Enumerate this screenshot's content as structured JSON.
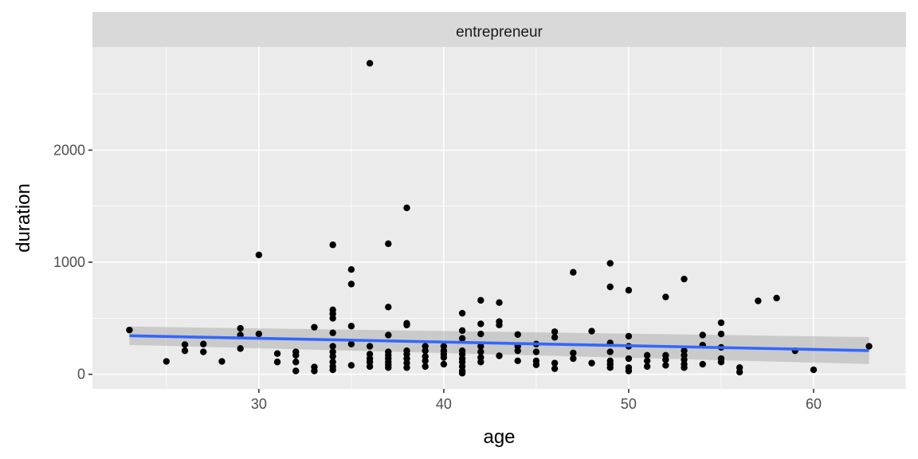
{
  "chart_data": {
    "type": "scatter",
    "facet_label": "entrepreneur",
    "xlabel": "age",
    "ylabel": "duration",
    "xlim": [
      21,
      65
    ],
    "ylim": [
      -130,
      2920
    ],
    "x_ticks": [
      30,
      40,
      50,
      60
    ],
    "y_ticks": [
      0,
      1000,
      2000
    ],
    "grid": true,
    "colors": {
      "panel_bg": "#ebebeb",
      "strip_bg": "#d9d9d9",
      "grid": "#ffffff",
      "points": "#000000",
      "smooth_line": "#3366ff",
      "ribbon": "#999999"
    },
    "points": [
      [
        23,
        395
      ],
      [
        25,
        115
      ],
      [
        26,
        210
      ],
      [
        26,
        265
      ],
      [
        27,
        200
      ],
      [
        27,
        270
      ],
      [
        28,
        115
      ],
      [
        29,
        410
      ],
      [
        29,
        350
      ],
      [
        29,
        230
      ],
      [
        30,
        1065
      ],
      [
        30,
        360
      ],
      [
        31,
        185
      ],
      [
        31,
        110
      ],
      [
        32,
        30
      ],
      [
        32,
        110
      ],
      [
        32,
        170
      ],
      [
        32,
        200
      ],
      [
        33,
        420
      ],
      [
        33,
        65
      ],
      [
        33,
        30
      ],
      [
        34,
        1155
      ],
      [
        34,
        575
      ],
      [
        34,
        540
      ],
      [
        34,
        500
      ],
      [
        34,
        370
      ],
      [
        34,
        250
      ],
      [
        34,
        200
      ],
      [
        34,
        160
      ],
      [
        34,
        110
      ],
      [
        34,
        70
      ],
      [
        34,
        40
      ],
      [
        35,
        935
      ],
      [
        35,
        805
      ],
      [
        35,
        430
      ],
      [
        35,
        270
      ],
      [
        35,
        80
      ],
      [
        36,
        2775
      ],
      [
        36,
        250
      ],
      [
        36,
        180
      ],
      [
        36,
        140
      ],
      [
        36,
        110
      ],
      [
        36,
        70
      ],
      [
        37,
        1165
      ],
      [
        37,
        600
      ],
      [
        37,
        350
      ],
      [
        37,
        200
      ],
      [
        37,
        170
      ],
      [
        37,
        140
      ],
      [
        37,
        110
      ],
      [
        37,
        85
      ],
      [
        37,
        60
      ],
      [
        38,
        1485
      ],
      [
        38,
        455
      ],
      [
        38,
        440
      ],
      [
        38,
        210
      ],
      [
        38,
        180
      ],
      [
        38,
        140
      ],
      [
        38,
        100
      ],
      [
        38,
        60
      ],
      [
        39,
        250
      ],
      [
        39,
        210
      ],
      [
        39,
        160
      ],
      [
        39,
        120
      ],
      [
        39,
        70
      ],
      [
        40,
        250
      ],
      [
        40,
        210
      ],
      [
        40,
        180
      ],
      [
        40,
        150
      ],
      [
        40,
        90
      ],
      [
        41,
        545
      ],
      [
        41,
        390
      ],
      [
        41,
        320
      ],
      [
        41,
        210
      ],
      [
        41,
        180
      ],
      [
        41,
        140
      ],
      [
        41,
        110
      ],
      [
        41,
        70
      ],
      [
        41,
        30
      ],
      [
        41,
        10
      ],
      [
        42,
        660
      ],
      [
        42,
        450
      ],
      [
        42,
        360
      ],
      [
        42,
        250
      ],
      [
        42,
        200
      ],
      [
        42,
        150
      ],
      [
        42,
        110
      ],
      [
        43,
        640
      ],
      [
        43,
        470
      ],
      [
        43,
        440
      ],
      [
        43,
        165
      ],
      [
        44,
        355
      ],
      [
        44,
        250
      ],
      [
        44,
        210
      ],
      [
        44,
        120
      ],
      [
        45,
        270
      ],
      [
        45,
        200
      ],
      [
        45,
        120
      ],
      [
        45,
        85
      ],
      [
        46,
        380
      ],
      [
        46,
        330
      ],
      [
        46,
        100
      ],
      [
        46,
        50
      ],
      [
        47,
        910
      ],
      [
        47,
        190
      ],
      [
        47,
        140
      ],
      [
        48,
        385
      ],
      [
        48,
        100
      ],
      [
        49,
        990
      ],
      [
        49,
        780
      ],
      [
        49,
        280
      ],
      [
        49,
        200
      ],
      [
        49,
        120
      ],
      [
        49,
        90
      ],
      [
        49,
        60
      ],
      [
        50,
        750
      ],
      [
        50,
        340
      ],
      [
        50,
        250
      ],
      [
        50,
        140
      ],
      [
        50,
        60
      ],
      [
        50,
        30
      ],
      [
        51,
        170
      ],
      [
        51,
        120
      ],
      [
        51,
        70
      ],
      [
        52,
        690
      ],
      [
        52,
        170
      ],
      [
        52,
        130
      ],
      [
        52,
        80
      ],
      [
        53,
        850
      ],
      [
        53,
        210
      ],
      [
        53,
        170
      ],
      [
        53,
        130
      ],
      [
        53,
        90
      ],
      [
        53,
        60
      ],
      [
        54,
        350
      ],
      [
        54,
        260
      ],
      [
        54,
        90
      ],
      [
        55,
        460
      ],
      [
        55,
        360
      ],
      [
        55,
        240
      ],
      [
        55,
        140
      ],
      [
        55,
        110
      ],
      [
        56,
        60
      ],
      [
        56,
        20
      ],
      [
        57,
        655
      ],
      [
        58,
        680
      ],
      [
        59,
        210
      ],
      [
        60,
        40
      ],
      [
        63,
        250
      ]
    ],
    "smooth": {
      "method": "linear",
      "x": [
        23,
        63
      ],
      "y": [
        344,
        212
      ],
      "lower": [
        262,
        92
      ],
      "upper": [
        426,
        332
      ]
    }
  }
}
